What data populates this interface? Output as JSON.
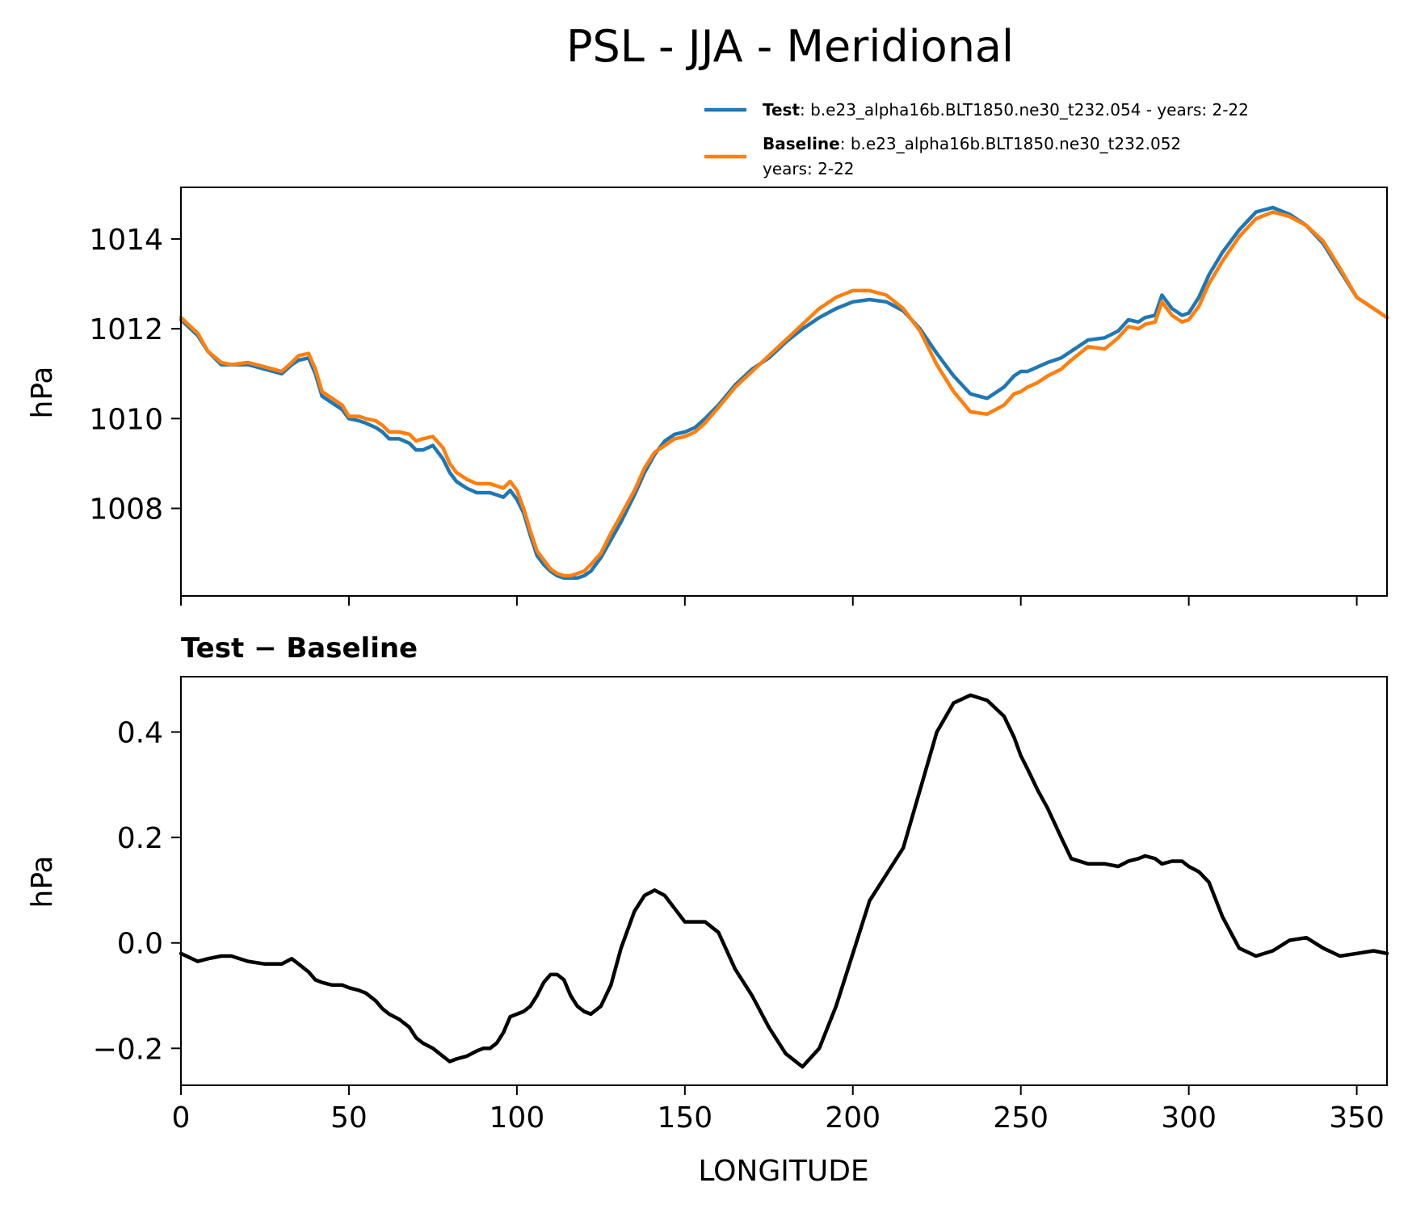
{
  "figure_title": "PSL - JJA - Meridional",
  "legend": {
    "test_name": "Test",
    "test_text": ": b.e23_alpha16b.BLT1850.ne30_t232.054 - years: 2-22",
    "baseline_name": "Baseline",
    "baseline_text_line1": ": b.e23_alpha16b.BLT1850.ne30_t232.052",
    "baseline_text_line2": "years: 2-22"
  },
  "diff_title": "Test − Baseline",
  "colors": {
    "test": "#1f77b4",
    "baseline": "#ff7f0e",
    "diff": "#000000"
  },
  "chart_data": [
    {
      "type": "line",
      "title": "",
      "xlabel": "",
      "ylabel": "hPa",
      "xlim": [
        0,
        359
      ],
      "ylim": [
        1006.05,
        1015.15
      ],
      "yticks": [
        1008,
        1010,
        1012,
        1014
      ],
      "ytick_labels": [
        "1008",
        "1010",
        "1012",
        "1014"
      ],
      "xticks": [
        0,
        50,
        100,
        150,
        200,
        250,
        300,
        350
      ],
      "x": [
        0,
        5,
        8,
        12,
        15,
        20,
        25,
        30,
        33,
        35,
        38,
        40,
        42,
        45,
        48,
        50,
        53,
        55,
        58,
        60,
        62,
        65,
        68,
        70,
        72,
        75,
        78,
        80,
        82,
        85,
        88,
        90,
        92,
        94,
        96,
        98,
        100,
        102,
        104,
        106,
        108,
        110,
        112,
        114,
        116,
        118,
        120,
        122,
        125,
        128,
        131,
        135,
        138,
        141,
        144,
        147,
        150,
        153,
        156,
        160,
        165,
        170,
        175,
        180,
        185,
        190,
        195,
        200,
        205,
        210,
        215,
        220,
        225,
        230,
        235,
        240,
        245,
        248,
        250,
        252,
        255,
        258,
        262,
        265,
        270,
        275,
        279,
        282,
        285,
        287,
        290,
        292,
        295,
        298,
        300,
        303,
        306,
        310,
        315,
        320,
        325,
        330,
        335,
        340,
        345,
        350,
        355,
        359
      ],
      "series": [
        {
          "name": "Test",
          "values": [
            1012.2,
            1011.85,
            1011.5,
            1011.2,
            1011.2,
            1011.2,
            1011.1,
            1011.0,
            1011.2,
            1011.3,
            1011.35,
            1011.0,
            1010.5,
            1010.35,
            1010.2,
            1010.0,
            1009.95,
            1009.9,
            1009.8,
            1009.7,
            1009.55,
            1009.55,
            1009.45,
            1009.3,
            1009.3,
            1009.4,
            1009.1,
            1008.8,
            1008.6,
            1008.45,
            1008.35,
            1008.35,
            1008.35,
            1008.3,
            1008.25,
            1008.4,
            1008.2,
            1007.9,
            1007.4,
            1006.95,
            1006.75,
            1006.6,
            1006.5,
            1006.45,
            1006.45,
            1006.45,
            1006.5,
            1006.6,
            1006.9,
            1007.3,
            1007.7,
            1008.3,
            1008.8,
            1009.2,
            1009.5,
            1009.65,
            1009.7,
            1009.8,
            1010.0,
            1010.3,
            1010.75,
            1011.1,
            1011.35,
            1011.7,
            1012.0,
            1012.25,
            1012.45,
            1012.6,
            1012.65,
            1012.6,
            1012.4,
            1012.0,
            1011.45,
            1010.95,
            1010.55,
            1010.45,
            1010.7,
            1010.95,
            1011.05,
            1011.05,
            1011.15,
            1011.25,
            1011.35,
            1011.5,
            1011.75,
            1011.8,
            1011.95,
            1012.2,
            1012.15,
            1012.25,
            1012.3,
            1012.75,
            1012.45,
            1012.3,
            1012.35,
            1012.7,
            1013.2,
            1013.7,
            1014.2,
            1014.6,
            1014.7,
            1014.55,
            1014.3,
            1013.9,
            1013.3,
            1012.7,
            1012.45,
            1012.25
          ]
        },
        {
          "name": "Baseline",
          "values": [
            1012.25,
            1011.9,
            1011.5,
            1011.25,
            1011.2,
            1011.25,
            1011.15,
            1011.05,
            1011.25,
            1011.4,
            1011.45,
            1011.1,
            1010.6,
            1010.45,
            1010.3,
            1010.05,
            1010.05,
            1010.0,
            1009.95,
            1009.85,
            1009.7,
            1009.7,
            1009.65,
            1009.5,
            1009.55,
            1009.6,
            1009.35,
            1009.0,
            1008.8,
            1008.65,
            1008.55,
            1008.55,
            1008.55,
            1008.5,
            1008.45,
            1008.6,
            1008.4,
            1008.0,
            1007.5,
            1007.05,
            1006.85,
            1006.65,
            1006.55,
            1006.5,
            1006.5,
            1006.55,
            1006.6,
            1006.75,
            1007.0,
            1007.45,
            1007.85,
            1008.4,
            1008.9,
            1009.25,
            1009.4,
            1009.55,
            1009.6,
            1009.7,
            1009.9,
            1010.25,
            1010.7,
            1011.05,
            1011.4,
            1011.75,
            1012.1,
            1012.45,
            1012.7,
            1012.85,
            1012.85,
            1012.75,
            1012.45,
            1011.95,
            1011.2,
            1010.6,
            1010.15,
            1010.1,
            1010.3,
            1010.55,
            1010.6,
            1010.7,
            1010.8,
            1010.95,
            1011.1,
            1011.3,
            1011.6,
            1011.55,
            1011.8,
            1012.05,
            1012.0,
            1012.1,
            1012.15,
            1012.6,
            1012.3,
            1012.15,
            1012.2,
            1012.5,
            1013.0,
            1013.5,
            1014.05,
            1014.45,
            1014.6,
            1014.5,
            1014.3,
            1013.95,
            1013.35,
            1012.7,
            1012.45,
            1012.25
          ]
        }
      ]
    },
    {
      "type": "line",
      "title": "Test − Baseline",
      "xlabel": "LONGITUDE",
      "ylabel": "hPa",
      "xlim": [
        0,
        359
      ],
      "ylim": [
        -0.27,
        0.505
      ],
      "yticks": [
        -0.2,
        0.0,
        0.2,
        0.4
      ],
      "ytick_labels": [
        "−0.2",
        "0.0",
        "0.2",
        "0.4"
      ],
      "xticks": [
        0,
        50,
        100,
        150,
        200,
        250,
        300,
        350
      ],
      "xtick_labels": [
        "0",
        "50",
        "100",
        "150",
        "200",
        "250",
        "300",
        "350"
      ],
      "x": [
        0,
        5,
        8,
        12,
        15,
        20,
        25,
        30,
        33,
        35,
        38,
        40,
        42,
        45,
        48,
        50,
        53,
        55,
        58,
        60,
        62,
        65,
        68,
        70,
        72,
        75,
        78,
        80,
        82,
        85,
        88,
        90,
        92,
        94,
        96,
        98,
        100,
        102,
        104,
        106,
        108,
        110,
        112,
        114,
        116,
        118,
        120,
        122,
        125,
        128,
        131,
        135,
        138,
        141,
        144,
        147,
        150,
        153,
        156,
        160,
        165,
        170,
        175,
        180,
        185,
        190,
        195,
        200,
        205,
        210,
        215,
        220,
        225,
        230,
        235,
        240,
        245,
        248,
        250,
        252,
        255,
        258,
        262,
        265,
        270,
        275,
        279,
        282,
        285,
        287,
        290,
        292,
        295,
        298,
        300,
        303,
        306,
        310,
        315,
        320,
        325,
        330,
        335,
        340,
        345,
        350,
        355,
        359
      ],
      "series": [
        {
          "name": "Test - Baseline",
          "values": [
            -0.02,
            -0.035,
            -0.03,
            -0.025,
            -0.025,
            -0.035,
            -0.04,
            -0.04,
            -0.03,
            -0.04,
            -0.055,
            -0.07,
            -0.075,
            -0.08,
            -0.08,
            -0.085,
            -0.09,
            -0.095,
            -0.11,
            -0.125,
            -0.135,
            -0.145,
            -0.16,
            -0.18,
            -0.19,
            -0.2,
            -0.215,
            -0.225,
            -0.22,
            -0.215,
            -0.205,
            -0.2,
            -0.2,
            -0.19,
            -0.17,
            -0.14,
            -0.135,
            -0.13,
            -0.12,
            -0.1,
            -0.075,
            -0.06,
            -0.06,
            -0.07,
            -0.1,
            -0.12,
            -0.13,
            -0.135,
            -0.12,
            -0.08,
            -0.01,
            0.06,
            0.09,
            0.1,
            0.09,
            0.065,
            0.04,
            0.04,
            0.04,
            0.02,
            -0.05,
            -0.1,
            -0.16,
            -0.21,
            -0.235,
            -0.2,
            -0.12,
            -0.02,
            0.08,
            0.13,
            0.18,
            0.29,
            0.4,
            0.455,
            0.47,
            0.46,
            0.43,
            0.39,
            0.355,
            0.33,
            0.29,
            0.255,
            0.2,
            0.16,
            0.15,
            0.15,
            0.145,
            0.155,
            0.16,
            0.165,
            0.16,
            0.15,
            0.155,
            0.155,
            0.145,
            0.135,
            0.115,
            0.05,
            -0.01,
            -0.025,
            -0.015,
            0.005,
            0.01,
            -0.01,
            -0.025,
            -0.02,
            -0.015,
            -0.02
          ]
        }
      ]
    }
  ]
}
